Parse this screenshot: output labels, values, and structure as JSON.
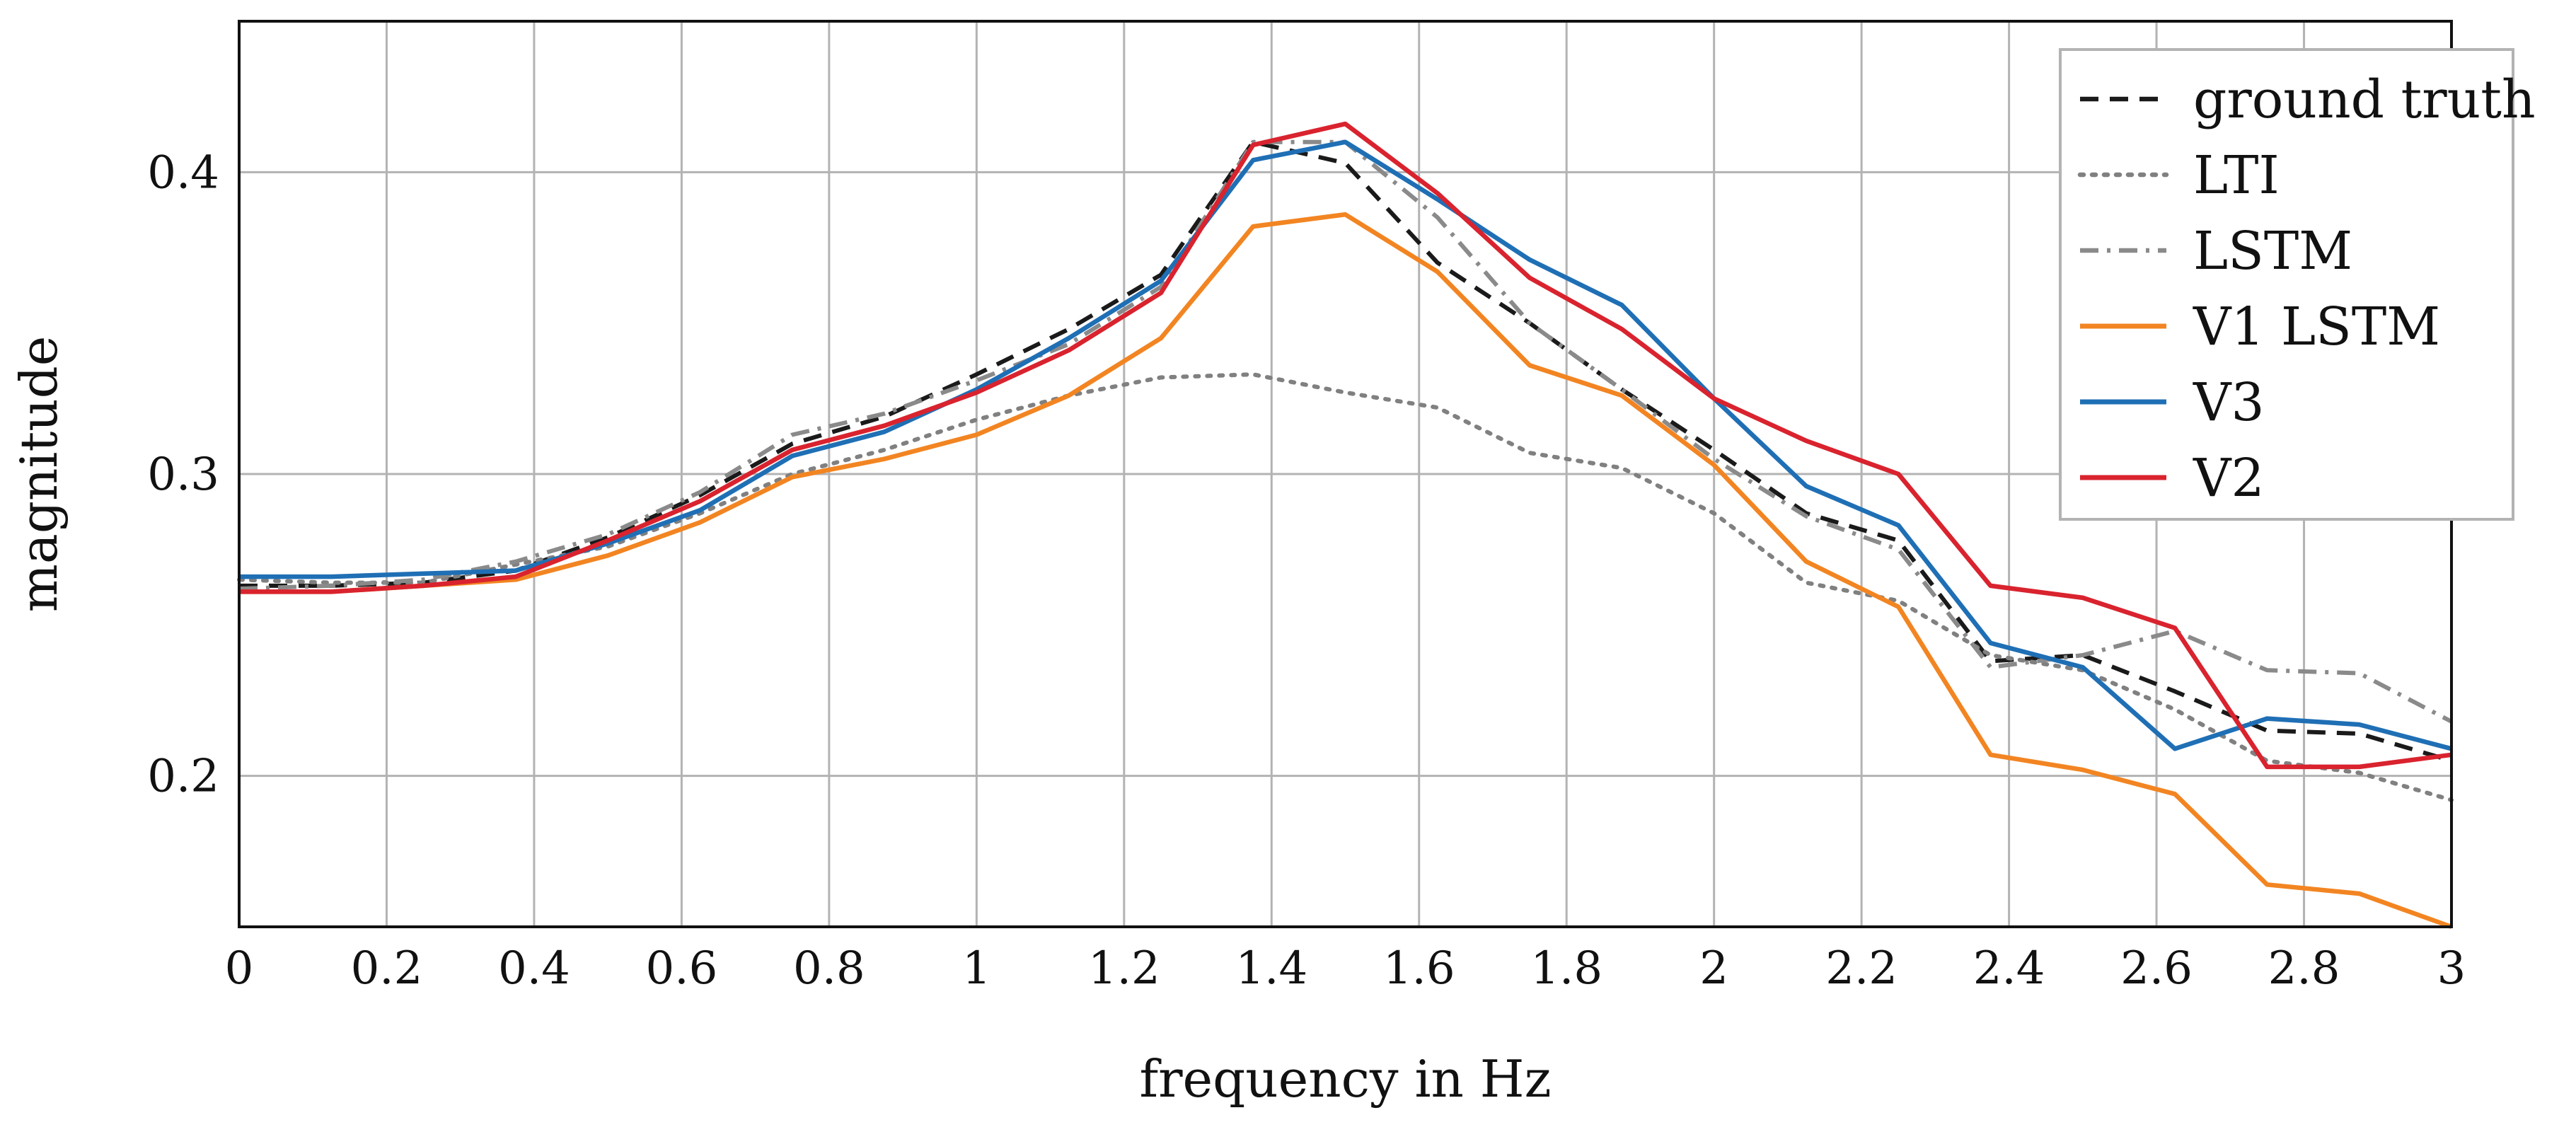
{
  "chart_data": {
    "type": "line",
    "xlabel": "frequency in Hz",
    "ylabel": "magnitude",
    "xlim": [
      0,
      3
    ],
    "ylim": [
      0.15,
      0.45
    ],
    "xticks": [
      0,
      0.2,
      0.4,
      0.6,
      0.8,
      1,
      1.2,
      1.4,
      1.6,
      1.8,
      2,
      2.2,
      2.4,
      2.6,
      2.8,
      3
    ],
    "xtick_labels": [
      "0",
      "0.2",
      "0.4",
      "0.6",
      "0.8",
      "1",
      "1.2",
      "1.4",
      "1.6",
      "1.8",
      "2",
      "2.2",
      "2.4",
      "2.6",
      "2.8",
      "3"
    ],
    "yticks": [
      0.2,
      0.3,
      0.4
    ],
    "ytick_labels": [
      "0.2",
      "0.3",
      "0.4"
    ],
    "grid": true,
    "legend_position": "top-right",
    "x": [
      0,
      0.125,
      0.25,
      0.375,
      0.5,
      0.625,
      0.75,
      0.875,
      1,
      1.125,
      1.25,
      1.375,
      1.5,
      1.625,
      1.75,
      1.875,
      2,
      2.125,
      2.25,
      2.375,
      2.5,
      2.625,
      2.75,
      2.875,
      3
    ],
    "series": [
      {
        "name": "ground truth",
        "color": "#1a1a1a",
        "style": "dashed",
        "values": [
          0.263,
          0.263,
          0.264,
          0.268,
          0.279,
          0.293,
          0.31,
          0.319,
          0.333,
          0.348,
          0.366,
          0.41,
          0.403,
          0.37,
          0.35,
          0.328,
          0.308,
          0.287,
          0.278,
          0.238,
          0.24,
          0.228,
          0.215,
          0.214,
          0.205
        ]
      },
      {
        "name": "LTI",
        "color": "#808080",
        "style": "dotted",
        "values": [
          0.265,
          0.264,
          0.264,
          0.27,
          0.276,
          0.287,
          0.3,
          0.308,
          0.318,
          0.326,
          0.332,
          0.333,
          0.327,
          0.322,
          0.307,
          0.302,
          0.287,
          0.264,
          0.258,
          0.24,
          0.235,
          0.222,
          0.205,
          0.201,
          0.192
        ]
      },
      {
        "name": "LSTM",
        "color": "#8a8a8a",
        "style": "dashdot",
        "values": [
          0.262,
          0.263,
          0.265,
          0.271,
          0.28,
          0.294,
          0.313,
          0.32,
          0.331,
          0.343,
          0.362,
          0.41,
          0.41,
          0.385,
          0.35,
          0.328,
          0.305,
          0.286,
          0.275,
          0.236,
          0.24,
          0.248,
          0.235,
          0.234,
          0.218
        ]
      },
      {
        "name": "V1 LSTM",
        "color": "#f28522",
        "style": "solid",
        "values": [
          0.261,
          0.261,
          0.263,
          0.265,
          0.273,
          0.284,
          0.299,
          0.305,
          0.313,
          0.326,
          0.345,
          0.382,
          0.386,
          0.367,
          0.336,
          0.326,
          0.303,
          0.271,
          0.256,
          0.207,
          0.202,
          0.194,
          0.164,
          0.161,
          0.15
        ]
      },
      {
        "name": "V3",
        "color": "#1f6fb5",
        "style": "solid",
        "values": [
          0.266,
          0.266,
          0.267,
          0.268,
          0.277,
          0.288,
          0.306,
          0.314,
          0.328,
          0.345,
          0.364,
          0.404,
          0.41,
          0.391,
          0.371,
          0.356,
          0.325,
          0.296,
          0.283,
          0.244,
          0.236,
          0.209,
          0.219,
          0.217,
          0.209
        ]
      },
      {
        "name": "V2",
        "color": "#d9232e",
        "style": "solid",
        "values": [
          0.261,
          0.261,
          0.263,
          0.266,
          0.278,
          0.291,
          0.308,
          0.316,
          0.327,
          0.341,
          0.36,
          0.409,
          0.416,
          0.393,
          0.365,
          0.348,
          0.325,
          0.311,
          0.3,
          0.263,
          0.259,
          0.249,
          0.203,
          0.203,
          0.207
        ]
      }
    ]
  }
}
